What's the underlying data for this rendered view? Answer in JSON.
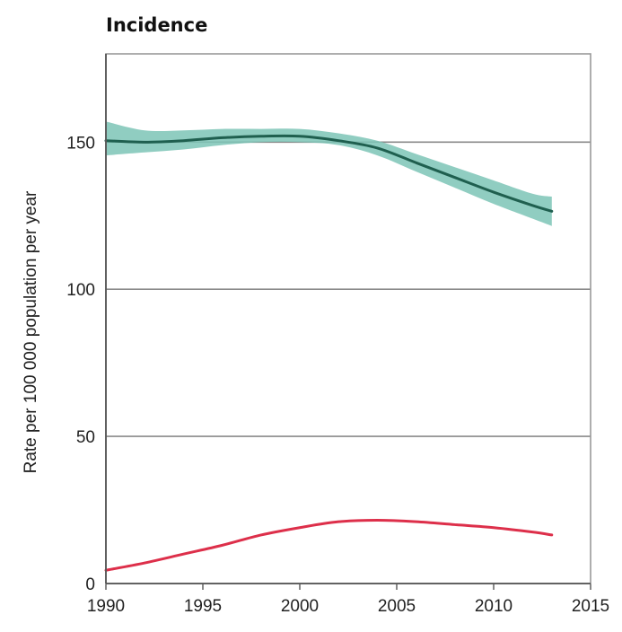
{
  "chart_data": {
    "type": "line",
    "title": "Incidence",
    "xlabel": "",
    "ylabel": "Rate per 100 000 population per year",
    "xlim": [
      1990,
      2015
    ],
    "ylim": [
      0,
      180
    ],
    "x_ticks": [
      "1990",
      "1995",
      "2000",
      "2005",
      "2010",
      "2015"
    ],
    "y_ticks": [
      "0",
      "50",
      "100",
      "150"
    ],
    "grid": "horizontal",
    "legend": "none",
    "series": [
      {
        "color": "#1f5f4f",
        "band_color": "#7cc4b6",
        "x": [
          1990,
          1992,
          1994,
          1996,
          1998,
          2000,
          2002,
          2004,
          2006,
          2008,
          2010,
          2012,
          2013
        ],
        "values": [
          150.5,
          150.0,
          150.5,
          151.5,
          152.0,
          152.0,
          150.5,
          148.0,
          143.0,
          138.0,
          133.0,
          128.5,
          126.5
        ],
        "lower": [
          145.5,
          146.5,
          147.5,
          149.0,
          150.0,
          150.0,
          149.0,
          145.5,
          140.0,
          134.5,
          129.0,
          124.0,
          121.5
        ],
        "upper": [
          157.0,
          154.0,
          154.0,
          154.5,
          154.5,
          154.5,
          153.0,
          150.5,
          146.0,
          141.5,
          137.0,
          132.5,
          131.5
        ]
      },
      {
        "color": "#dd2f4a",
        "x": [
          1990,
          1992,
          1994,
          1996,
          1998,
          2000,
          2002,
          2004,
          2006,
          2008,
          2010,
          2012,
          2013
        ],
        "values": [
          4.5,
          7.0,
          10.0,
          13.0,
          16.5,
          19.0,
          21.0,
          21.5,
          21.0,
          20.0,
          19.0,
          17.5,
          16.5
        ]
      }
    ]
  }
}
